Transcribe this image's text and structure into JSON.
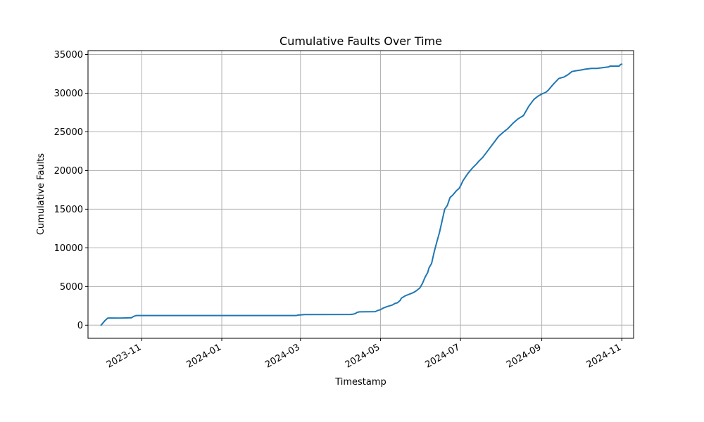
{
  "chart_data": {
    "type": "line",
    "title": "Cumulative Faults Over Time",
    "xlabel": "Timestamp",
    "ylabel": "Cumulative Faults",
    "grid": true,
    "line_color": "#1f77b4",
    "grid_color": "#b0b0b0",
    "xlim": [
      "2023-09-21",
      "2024-11-10"
    ],
    "ylim": [
      -1700,
      35500
    ],
    "x_ticks": [
      "2023-11",
      "2024-01",
      "2024-03",
      "2024-05",
      "2024-07",
      "2024-09",
      "2024-11"
    ],
    "y_ticks": [
      0,
      5000,
      10000,
      15000,
      20000,
      25000,
      30000,
      35000
    ],
    "y_tick_labels": [
      "0",
      "5000",
      "10000",
      "15000",
      "20000",
      "25000",
      "30000",
      "35000"
    ],
    "series": [
      {
        "x": [
          "2023-10-01",
          "2023-10-04",
          "2023-10-06",
          "2023-10-07",
          "2023-10-15",
          "2023-10-23",
          "2023-10-24",
          "2023-10-26",
          "2023-10-28",
          "2023-11-15",
          "2024-01-01",
          "2024-02-27",
          "2024-02-28",
          "2024-03-01",
          "2024-03-04",
          "2024-04-08",
          "2024-04-10",
          "2024-04-12",
          "2024-04-13",
          "2024-04-15",
          "2024-04-27",
          "2024-04-29",
          "2024-05-01",
          "2024-05-03",
          "2024-05-06",
          "2024-05-08",
          "2024-05-10",
          "2024-05-12",
          "2024-05-14",
          "2024-05-16",
          "2024-05-17",
          "2024-05-20",
          "2024-05-23",
          "2024-05-26",
          "2024-05-28",
          "2024-05-31",
          "2024-06-02",
          "2024-06-04",
          "2024-06-06",
          "2024-06-07",
          "2024-06-09",
          "2024-06-11",
          "2024-06-13",
          "2024-06-15",
          "2024-06-17",
          "2024-06-19",
          "2024-06-21",
          "2024-06-23",
          "2024-06-25",
          "2024-06-27",
          "2024-06-28",
          "2024-06-30",
          "2024-07-01",
          "2024-07-03",
          "2024-07-05",
          "2024-07-07",
          "2024-07-10",
          "2024-07-13",
          "2024-07-15",
          "2024-07-18",
          "2024-07-22",
          "2024-07-26",
          "2024-07-30",
          "2024-08-03",
          "2024-08-06",
          "2024-08-10",
          "2024-08-14",
          "2024-08-18",
          "2024-08-22",
          "2024-08-26",
          "2024-08-29",
          "2024-09-01",
          "2024-09-04",
          "2024-09-06",
          "2024-09-08",
          "2024-09-10",
          "2024-09-14",
          "2024-09-18",
          "2024-09-21",
          "2024-09-24",
          "2024-09-27",
          "2024-10-01",
          "2024-10-04",
          "2024-10-09",
          "2024-10-13",
          "2024-10-22",
          "2024-10-23",
          "2024-10-30",
          "2024-10-31",
          "2024-11-01"
        ],
        "values": [
          0,
          600,
          900,
          930,
          920,
          950,
          950,
          1150,
          1250,
          1250,
          1250,
          1250,
          1300,
          1330,
          1370,
          1380,
          1420,
          1500,
          1650,
          1720,
          1750,
          1900,
          2000,
          2200,
          2400,
          2500,
          2600,
          2800,
          2900,
          3200,
          3500,
          3800,
          4000,
          4200,
          4400,
          4800,
          5400,
          6200,
          6800,
          7400,
          8000,
          9500,
          10800,
          12000,
          13500,
          15000,
          15500,
          16500,
          16800,
          17200,
          17400,
          17700,
          18000,
          18700,
          19200,
          19700,
          20300,
          20800,
          21200,
          21700,
          22600,
          23500,
          24400,
          25000,
          25400,
          26100,
          26700,
          27100,
          28300,
          29200,
          29600,
          29900,
          30100,
          30400,
          30800,
          31200,
          31900,
          32100,
          32400,
          32800,
          32900,
          33000,
          33100,
          33200,
          33200,
          33400,
          33500,
          33500,
          33700,
          33750
        ]
      }
    ]
  }
}
